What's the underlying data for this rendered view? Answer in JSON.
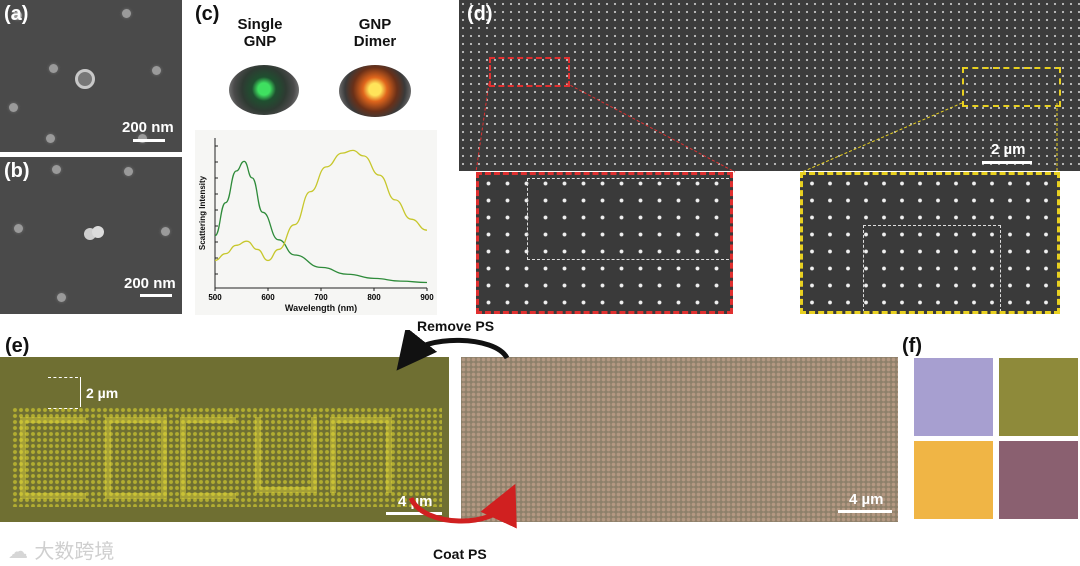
{
  "panels": {
    "a": {
      "letter": "(a)",
      "scalebar": "200 nm"
    },
    "b": {
      "letter": "(b)",
      "scalebar": "200 nm"
    },
    "c": {
      "letter": "(c)",
      "single_label": "Single\nGNP",
      "dimer_label": "GNP\nDimer"
    },
    "d": {
      "letter": "(d)",
      "scalebar": "2 µm"
    },
    "e": {
      "letter": "(e)",
      "scalebar_left": "4 µm",
      "scalebar_right": "4 µm",
      "height_marker": "2 µm"
    },
    "f": {
      "letter": "(f)"
    }
  },
  "arrows": {
    "top": "Remove PS",
    "bottom": "Coat PS"
  },
  "watermark": "大数跨境",
  "swatch_colors": [
    "#a79fd0",
    "#8e8a3a",
    "#f0b545",
    "#8a6070"
  ],
  "chart_data": {
    "type": "line",
    "xlabel": "Wavelength (nm)",
    "ylabel": "Scattering Intensity",
    "xlim": [
      500,
      900
    ],
    "x_ticks": [
      500,
      600,
      700,
      800,
      900
    ],
    "series": [
      {
        "color": "#2e8b3a",
        "x": [
          500,
          520,
          540,
          555,
          570,
          590,
          620,
          650,
          700,
          750,
          800,
          850,
          900
        ],
        "y": [
          0.38,
          0.62,
          0.85,
          0.92,
          0.8,
          0.55,
          0.35,
          0.24,
          0.15,
          0.1,
          0.07,
          0.05,
          0.04
        ]
      },
      {
        "color": "#c7c72c",
        "x": [
          500,
          520,
          540,
          560,
          580,
          600,
          620,
          650,
          680,
          710,
          740,
          760,
          780,
          810,
          840,
          870,
          900
        ],
        "y": [
          0.2,
          0.25,
          0.31,
          0.34,
          0.28,
          0.2,
          0.28,
          0.46,
          0.7,
          0.88,
          0.98,
          1.0,
          0.96,
          0.82,
          0.64,
          0.5,
          0.42
        ]
      }
    ]
  }
}
